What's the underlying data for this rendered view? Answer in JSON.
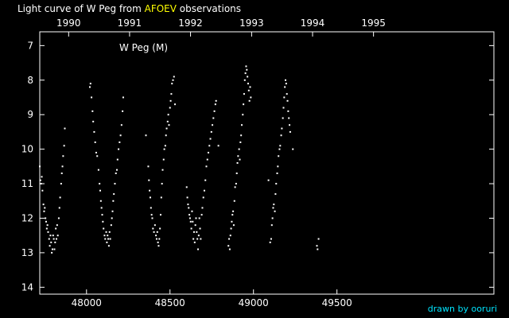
{
  "title_prefix": "Light curve of W Peg from ",
  "title_source": "AFOEV",
  "title_suffix": " observations",
  "credit": "drawn by ooruri",
  "colors": {
    "background": "#000000",
    "foreground": "#ffffff",
    "source": "#ffff00",
    "credit": "#00e5ff"
  },
  "chart_data": {
    "type": "scatter",
    "annotation": "W Peg (M)",
    "xlabel": "",
    "ylabel": "",
    "xlim": [
      47720,
      50440
    ],
    "ylim": [
      6.6,
      14.2
    ],
    "y_reversed": true,
    "grid": false,
    "x_ticks": [
      48000,
      48500,
      49000,
      49500
    ],
    "y_ticks": [
      7,
      8,
      9,
      10,
      11,
      12,
      13,
      14
    ],
    "year_ticks": [
      {
        "label": "1990",
        "jd": 47893
      },
      {
        "label": "1991",
        "jd": 48258
      },
      {
        "label": "1992",
        "jd": 48623
      },
      {
        "label": "1993",
        "jd": 48989
      },
      {
        "label": "1994",
        "jd": 49354
      },
      {
        "label": "1995",
        "jd": 49719
      }
    ],
    "points": [
      [
        47720,
        10.5
      ],
      [
        47724,
        10.9
      ],
      [
        47728,
        11.0
      ],
      [
        47732,
        10.8
      ],
      [
        47736,
        11.2
      ],
      [
        47742,
        11.6
      ],
      [
        47746,
        11.8
      ],
      [
        47750,
        11.7
      ],
      [
        47754,
        12.0
      ],
      [
        47758,
        12.1
      ],
      [
        47762,
        12.3
      ],
      [
        47766,
        12.2
      ],
      [
        47770,
        12.4
      ],
      [
        47776,
        12.6
      ],
      [
        47780,
        12.8
      ],
      [
        47784,
        12.5
      ],
      [
        47788,
        12.7
      ],
      [
        47792,
        13.0
      ],
      [
        47796,
        12.9
      ],
      [
        47800,
        12.5
      ],
      [
        47804,
        12.6
      ],
      [
        47808,
        12.9
      ],
      [
        47812,
        12.7
      ],
      [
        47816,
        12.3
      ],
      [
        47820,
        12.6
      ],
      [
        47824,
        12.2
      ],
      [
        47828,
        12.5
      ],
      [
        47834,
        12.0
      ],
      [
        47838,
        11.7
      ],
      [
        47842,
        11.4
      ],
      [
        47848,
        11.0
      ],
      [
        47852,
        10.7
      ],
      [
        47856,
        10.5
      ],
      [
        47860,
        10.2
      ],
      [
        47866,
        9.9
      ],
      [
        47870,
        9.4
      ],
      [
        48020,
        8.2
      ],
      [
        48024,
        8.1
      ],
      [
        48030,
        8.5
      ],
      [
        48036,
        8.9
      ],
      [
        48040,
        9.2
      ],
      [
        48046,
        9.5
      ],
      [
        48052,
        9.8
      ],
      [
        48058,
        10.1
      ],
      [
        48064,
        10.2
      ],
      [
        48072,
        10.6
      ],
      [
        48078,
        11.0
      ],
      [
        48082,
        11.2
      ],
      [
        48086,
        11.5
      ],
      [
        48090,
        11.7
      ],
      [
        48094,
        11.9
      ],
      [
        48098,
        12.1
      ],
      [
        48102,
        12.3
      ],
      [
        48108,
        12.5
      ],
      [
        48112,
        12.6
      ],
      [
        48118,
        12.4
      ],
      [
        48122,
        12.7
      ],
      [
        48126,
        12.5
      ],
      [
        48130,
        12.6
      ],
      [
        48134,
        12.8
      ],
      [
        48138,
        12.4
      ],
      [
        48142,
        12.6
      ],
      [
        48148,
        12.2
      ],
      [
        48152,
        12.0
      ],
      [
        48156,
        11.8
      ],
      [
        48160,
        11.5
      ],
      [
        48164,
        11.3
      ],
      [
        48170,
        11.0
      ],
      [
        48176,
        10.7
      ],
      [
        48182,
        10.6
      ],
      [
        48186,
        10.3
      ],
      [
        48192,
        10.0
      ],
      [
        48198,
        9.8
      ],
      [
        48204,
        9.6
      ],
      [
        48210,
        9.3
      ],
      [
        48216,
        8.9
      ],
      [
        48220,
        8.5
      ],
      [
        48356,
        9.6
      ],
      [
        48370,
        10.5
      ],
      [
        48374,
        10.9
      ],
      [
        48378,
        11.2
      ],
      [
        48382,
        11.4
      ],
      [
        48386,
        11.7
      ],
      [
        48390,
        11.9
      ],
      [
        48394,
        12.0
      ],
      [
        48398,
        12.3
      ],
      [
        48404,
        12.4
      ],
      [
        48410,
        12.2
      ],
      [
        48416,
        12.5
      ],
      [
        48420,
        12.6
      ],
      [
        48424,
        12.4
      ],
      [
        48428,
        12.7
      ],
      [
        48432,
        12.8
      ],
      [
        48436,
        12.6
      ],
      [
        48440,
        12.3
      ],
      [
        48444,
        11.9
      ],
      [
        48448,
        11.4
      ],
      [
        48452,
        11.0
      ],
      [
        48456,
        10.6
      ],
      [
        48462,
        10.3
      ],
      [
        48466,
        10.0
      ],
      [
        48472,
        9.9
      ],
      [
        48476,
        9.6
      ],
      [
        48480,
        9.4
      ],
      [
        48486,
        9.2
      ],
      [
        48490,
        9.0
      ],
      [
        48494,
        9.3
      ],
      [
        48500,
        8.8
      ],
      [
        48504,
        8.6
      ],
      [
        48508,
        8.4
      ],
      [
        48512,
        8.1
      ],
      [
        48518,
        8.0
      ],
      [
        48524,
        7.9
      ],
      [
        48530,
        8.7
      ],
      [
        48600,
        11.1
      ],
      [
        48604,
        11.4
      ],
      [
        48608,
        11.6
      ],
      [
        48612,
        11.7
      ],
      [
        48616,
        11.9
      ],
      [
        48620,
        12.0
      ],
      [
        48624,
        12.1
      ],
      [
        48628,
        12.3
      ],
      [
        48632,
        11.8
      ],
      [
        48636,
        12.1
      ],
      [
        48640,
        12.6
      ],
      [
        48644,
        12.4
      ],
      [
        48648,
        12.7
      ],
      [
        48652,
        12.2
      ],
      [
        48656,
        12.0
      ],
      [
        48660,
        12.4
      ],
      [
        48664,
        12.6
      ],
      [
        48668,
        12.9
      ],
      [
        48672,
        12.5
      ],
      [
        48676,
        12.0
      ],
      [
        48680,
        12.3
      ],
      [
        48684,
        12.6
      ],
      [
        48690,
        11.9
      ],
      [
        48694,
        11.7
      ],
      [
        48700,
        11.4
      ],
      [
        48706,
        11.2
      ],
      [
        48712,
        10.9
      ],
      [
        48718,
        10.5
      ],
      [
        48724,
        10.3
      ],
      [
        48730,
        10.1
      ],
      [
        48736,
        9.9
      ],
      [
        48742,
        9.7
      ],
      [
        48748,
        9.5
      ],
      [
        48754,
        9.3
      ],
      [
        48760,
        9.1
      ],
      [
        48766,
        8.9
      ],
      [
        48772,
        8.7
      ],
      [
        48776,
        8.6
      ],
      [
        48790,
        9.9
      ],
      [
        48850,
        12.8
      ],
      [
        48854,
        12.6
      ],
      [
        48858,
        12.9
      ],
      [
        48862,
        12.5
      ],
      [
        48866,
        12.3
      ],
      [
        48870,
        12.1
      ],
      [
        48874,
        11.9
      ],
      [
        48878,
        11.8
      ],
      [
        48882,
        12.2
      ],
      [
        48886,
        11.5
      ],
      [
        48890,
        11.1
      ],
      [
        48896,
        11.0
      ],
      [
        48900,
        10.7
      ],
      [
        48904,
        10.4
      ],
      [
        48908,
        10.2
      ],
      [
        48914,
        10.0
      ],
      [
        48918,
        10.3
      ],
      [
        48922,
        9.8
      ],
      [
        48926,
        9.6
      ],
      [
        48930,
        9.3
      ],
      [
        48936,
        9.0
      ],
      [
        48940,
        8.7
      ],
      [
        48944,
        8.4
      ],
      [
        48948,
        8.0
      ],
      [
        48952,
        7.8
      ],
      [
        48956,
        7.6
      ],
      [
        48960,
        7.7
      ],
      [
        48964,
        7.9
      ],
      [
        48968,
        8.1
      ],
      [
        48972,
        8.3
      ],
      [
        48976,
        8.6
      ],
      [
        48980,
        8.2
      ],
      [
        48984,
        8.5
      ],
      [
        49090,
        10.9
      ],
      [
        49100,
        12.7
      ],
      [
        49106,
        12.6
      ],
      [
        49110,
        12.2
      ],
      [
        49114,
        12.0
      ],
      [
        49118,
        11.7
      ],
      [
        49122,
        11.6
      ],
      [
        49128,
        11.8
      ],
      [
        49132,
        11.3
      ],
      [
        49136,
        11.0
      ],
      [
        49142,
        10.7
      ],
      [
        49146,
        10.5
      ],
      [
        49150,
        10.2
      ],
      [
        49156,
        10.0
      ],
      [
        49160,
        9.9
      ],
      [
        49166,
        9.6
      ],
      [
        49170,
        9.4
      ],
      [
        49176,
        9.1
      ],
      [
        49180,
        8.8
      ],
      [
        49184,
        8.5
      ],
      [
        49188,
        8.2
      ],
      [
        49192,
        8.0
      ],
      [
        49196,
        8.1
      ],
      [
        49200,
        8.4
      ],
      [
        49204,
        8.6
      ],
      [
        49208,
        8.9
      ],
      [
        49212,
        9.1
      ],
      [
        49216,
        9.3
      ],
      [
        49220,
        9.5
      ],
      [
        49236,
        10.0
      ],
      [
        49380,
        12.8
      ],
      [
        49384,
        12.9
      ],
      [
        49390,
        12.6
      ]
    ]
  }
}
